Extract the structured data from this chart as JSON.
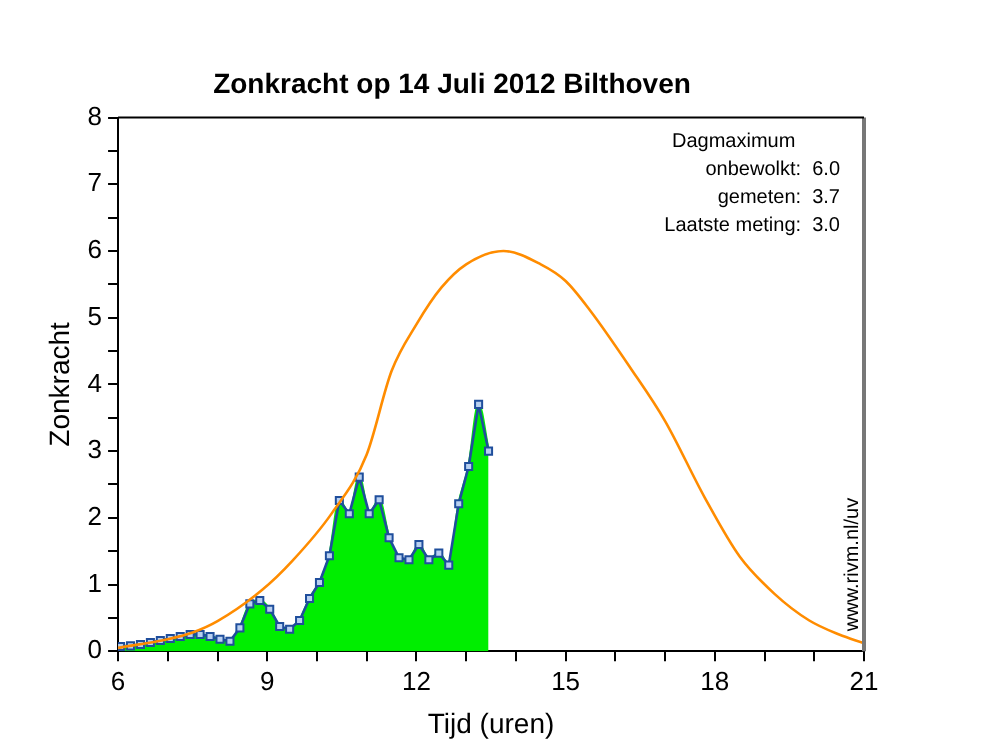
{
  "chart_data": {
    "type": "area",
    "title": "Zonkracht op 14 Juli 2012 Bilthoven",
    "xlabel": "Tijd (uren)",
    "ylabel": "Zonkracht",
    "xlim": [
      6,
      21
    ],
    "ylim": [
      0,
      8
    ],
    "xticks": [
      6,
      {
        "value": 7,
        "label": null
      },
      {
        "value": 8,
        "label": null
      },
      9,
      {
        "value": 10,
        "label": null
      },
      {
        "value": 11,
        "label": null
      },
      12,
      {
        "value": 13,
        "label": null
      },
      {
        "value": 14,
        "label": null
      },
      15,
      {
        "value": 16,
        "label": null
      },
      {
        "value": 17,
        "label": null
      },
      18,
      {
        "value": 19,
        "label": null
      },
      {
        "value": 20,
        "label": null
      },
      21
    ],
    "yticks": [
      0,
      {
        "value": 0.5,
        "label": null
      },
      1,
      {
        "value": 1.5,
        "label": null
      },
      2,
      {
        "value": 2.5,
        "label": null
      },
      3,
      {
        "value": 3.5,
        "label": null
      },
      4,
      {
        "value": 4.5,
        "label": null
      },
      5,
      {
        "value": 5.5,
        "label": null
      },
      6,
      {
        "value": 6.5,
        "label": null
      },
      7,
      {
        "value": 7.5,
        "label": null
      },
      8
    ],
    "grid": false,
    "legend": false,
    "marker": "square",
    "series": [
      {
        "type": "line",
        "color": "#ff8c00",
        "marker": "none",
        "x": [
          6,
          7,
          7.5,
          8,
          8.9,
          9.5,
          10.3,
          11,
          11.5,
          12,
          12.5,
          13,
          13.75,
          14.5,
          15,
          15.5,
          16.3,
          17,
          17.8,
          18.5,
          19.2,
          19.9,
          20.5,
          21
        ],
        "values": [
          0.05,
          0.18,
          0.28,
          0.45,
          0.92,
          1.35,
          2.07,
          2.95,
          4.2,
          4.9,
          5.45,
          5.8,
          6.0,
          5.8,
          5.55,
          5.1,
          4.25,
          3.45,
          2.3,
          1.42,
          0.86,
          0.46,
          0.25,
          0.12
        ]
      },
      {
        "color": "#00ee00",
        "x": [
          6.05,
          6.25,
          6.45,
          6.65,
          6.85,
          7.05,
          7.25,
          7.45,
          7.65,
          7.85,
          8.05,
          8.25,
          8.45,
          8.65,
          8.85,
          9.05,
          9.25,
          9.45,
          9.65,
          9.85,
          10.05,
          10.25,
          10.45,
          10.65,
          10.85,
          11.05,
          11.25,
          11.45,
          11.65,
          11.85,
          12.05,
          12.25,
          12.45,
          12.65,
          12.85,
          13.05,
          13.25,
          13.45
        ],
        "values": [
          0.07,
          0.08,
          0.1,
          0.13,
          0.16,
          0.19,
          0.22,
          0.25,
          0.25,
          0.22,
          0.18,
          0.15,
          0.35,
          0.71,
          0.76,
          0.63,
          0.37,
          0.33,
          0.46,
          0.79,
          1.03,
          1.43,
          2.26,
          2.06,
          2.61,
          2.06,
          2.27,
          1.7,
          1.4,
          1.37,
          1.6,
          1.37,
          1.47,
          1.29,
          2.21,
          2.77,
          3.7,
          3.0
        ],
        "marker": "none"
      },
      {
        "type": "line",
        "color": "#1f4e9c",
        "x": [
          6.05,
          6.25,
          6.45,
          6.65,
          6.85,
          7.05,
          7.25,
          7.45,
          7.65,
          7.85,
          8.05,
          8.25,
          8.45,
          8.65,
          8.85,
          9.05,
          9.25,
          9.45,
          9.65,
          9.85,
          10.05,
          10.25,
          10.45,
          10.65,
          10.85,
          11.05,
          11.25,
          11.45,
          11.65,
          11.85,
          12.05,
          12.25,
          12.45,
          12.65,
          12.85,
          13.05,
          13.25,
          13.45
        ],
        "values": [
          0.07,
          0.08,
          0.1,
          0.13,
          0.16,
          0.19,
          0.22,
          0.25,
          0.25,
          0.22,
          0.18,
          0.15,
          0.35,
          0.71,
          0.76,
          0.63,
          0.37,
          0.33,
          0.46,
          0.79,
          1.03,
          1.43,
          2.26,
          2.06,
          2.61,
          2.06,
          2.27,
          1.7,
          1.4,
          1.37,
          1.6,
          1.37,
          1.47,
          1.29,
          2.21,
          2.77,
          3.7,
          3.0
        ]
      }
    ],
    "annotations": [
      "Dagmaximum",
      "onbewolkt:  6.0",
      "gemeten:  3.7",
      "Laatste meting:  3.0",
      "www.rivm.nl/uv"
    ]
  }
}
